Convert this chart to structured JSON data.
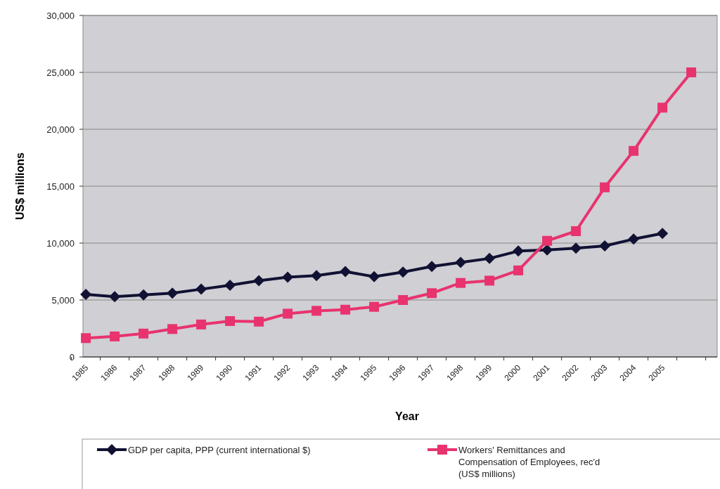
{
  "chart_data": {
    "type": "line",
    "xlabel": "Year",
    "ylabel": "US$ millions",
    "categories": [
      "1985",
      "1986",
      "1987",
      "1988",
      "1989",
      "1990",
      "1991",
      "1992",
      "1993",
      "1994",
      "1995",
      "1996",
      "1997",
      "1998",
      "1999",
      "2000",
      "2001",
      "2002",
      "2003",
      "2004",
      "2005",
      null
    ],
    "series": [
      {
        "name": "GDP per capita, PPP (current international $)",
        "color": "#111133",
        "marker": "diamond",
        "values": [
          5500,
          5300,
          5450,
          5600,
          5950,
          6300,
          6700,
          7000,
          7150,
          7500,
          7050,
          7450,
          7950,
          8300,
          8650,
          9300,
          9400,
          9550,
          9750,
          10350,
          10850,
          null
        ]
      },
      {
        "name": "Workers' Remittances and Compensation of Employees, rec'd (US$ millions)",
        "color": "#e8336e",
        "marker": "square",
        "values": [
          1650,
          1800,
          2050,
          2450,
          2850,
          3150,
          3100,
          3800,
          4050,
          4150,
          4400,
          5000,
          5600,
          6500,
          6700,
          7600,
          10200,
          11050,
          14900,
          18100,
          21900,
          25000
        ]
      }
    ],
    "ylim": [
      0,
      30000
    ],
    "yticks": [
      {
        "value": 0,
        "label": "0"
      },
      {
        "value": 5000,
        "label": "5,000"
      },
      {
        "value": 10000,
        "label": "10,000"
      },
      {
        "value": 15000,
        "label": "15,000"
      },
      {
        "value": 20000,
        "label": "20,000"
      },
      {
        "value": 25000,
        "label": "25,000"
      },
      {
        "value": 30000,
        "label": "30,000"
      }
    ],
    "grid": "y",
    "legend": "bottom"
  }
}
